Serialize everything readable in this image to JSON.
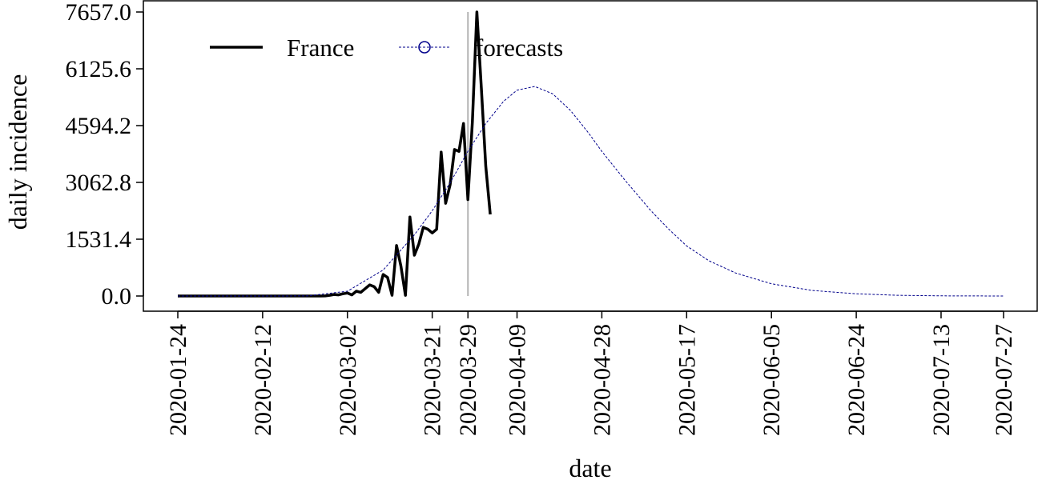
{
  "chart_data": {
    "type": "line",
    "xlabel": "date",
    "ylabel": "daily incidence",
    "x_ticks": [
      "2020-01-24",
      "2020-02-12",
      "2020-03-02",
      "2020-03-21",
      "2020-03-29",
      "2020-04-09",
      "2020-04-28",
      "2020-05-17",
      "2020-06-05",
      "2020-06-24",
      "2020-07-13",
      "2020-07-27"
    ],
    "y_ticks": [
      "0.0",
      "1531.4",
      "3062.8",
      "4594.2",
      "6125.6",
      "7657.0"
    ],
    "ylim": [
      0,
      7657.0
    ],
    "xlim": [
      "2020-01-24",
      "2020-07-27"
    ],
    "vertical_line": "2020-03-29",
    "legend_position": "top-left",
    "colors": {
      "observed": "#000000",
      "forecast": "#00008b",
      "vline": "#b3b3b3"
    },
    "series": [
      {
        "name": "France",
        "style": "solid",
        "x": [
          "2020-01-24",
          "2020-01-25",
          "2020-01-26",
          "2020-01-27",
          "2020-01-28",
          "2020-01-29",
          "2020-01-30",
          "2020-01-31",
          "2020-02-01",
          "2020-02-02",
          "2020-02-03",
          "2020-02-04",
          "2020-02-05",
          "2020-02-06",
          "2020-02-07",
          "2020-02-08",
          "2020-02-09",
          "2020-02-10",
          "2020-02-11",
          "2020-02-12",
          "2020-02-13",
          "2020-02-14",
          "2020-02-15",
          "2020-02-16",
          "2020-02-17",
          "2020-02-18",
          "2020-02-19",
          "2020-02-20",
          "2020-02-21",
          "2020-02-22",
          "2020-02-23",
          "2020-02-24",
          "2020-02-25",
          "2020-02-26",
          "2020-02-27",
          "2020-02-28",
          "2020-02-29",
          "2020-03-01",
          "2020-03-02",
          "2020-03-03",
          "2020-03-04",
          "2020-03-05",
          "2020-03-06",
          "2020-03-07",
          "2020-03-08",
          "2020-03-09",
          "2020-03-10",
          "2020-03-11",
          "2020-03-12",
          "2020-03-13",
          "2020-03-14",
          "2020-03-15",
          "2020-03-16",
          "2020-03-17",
          "2020-03-18",
          "2020-03-19",
          "2020-03-20",
          "2020-03-21",
          "2020-03-22",
          "2020-03-23",
          "2020-03-24",
          "2020-03-25",
          "2020-03-26",
          "2020-03-27",
          "2020-03-28",
          "2020-03-29",
          "2020-03-30",
          "2020-03-31",
          "2020-04-01",
          "2020-04-02",
          "2020-04-03"
        ],
        "values": [
          0,
          0,
          0,
          0,
          0,
          0,
          0,
          0,
          0,
          0,
          0,
          0,
          0,
          0,
          0,
          0,
          0,
          0,
          0,
          0,
          0,
          0,
          0,
          0,
          0,
          0,
          0,
          0,
          0,
          0,
          0,
          0,
          0,
          2,
          20,
          40,
          30,
          60,
          80,
          30,
          130,
          100,
          200,
          300,
          250,
          100,
          580,
          500,
          20,
          1360,
          800,
          20,
          2130,
          1100,
          1400,
          1850,
          1800,
          1700,
          1800,
          3880,
          2500,
          3000,
          3950,
          3900,
          4650,
          2600,
          4700,
          7657,
          5600,
          3500,
          2200
        ]
      },
      {
        "name": "forecasts",
        "style": "dashed",
        "x": [
          "2020-01-24",
          "2020-02-12",
          "2020-02-22",
          "2020-03-02",
          "2020-03-10",
          "2020-03-17",
          "2020-03-21",
          "2020-03-25",
          "2020-03-29",
          "2020-04-02",
          "2020-04-06",
          "2020-04-09",
          "2020-04-13",
          "2020-04-17",
          "2020-04-21",
          "2020-04-25",
          "2020-04-28",
          "2020-05-03",
          "2020-05-09",
          "2020-05-13",
          "2020-05-17",
          "2020-05-22",
          "2020-05-28",
          "2020-06-05",
          "2020-06-14",
          "2020-06-24",
          "2020-07-03",
          "2020-07-13",
          "2020-07-27"
        ],
        "values": [
          0,
          0,
          2,
          130,
          700,
          1650,
          2300,
          3050,
          3900,
          4650,
          5250,
          5550,
          5650,
          5450,
          5000,
          4400,
          3900,
          3150,
          2300,
          1800,
          1350,
          950,
          620,
          330,
          150,
          60,
          20,
          5,
          0
        ]
      }
    ]
  }
}
